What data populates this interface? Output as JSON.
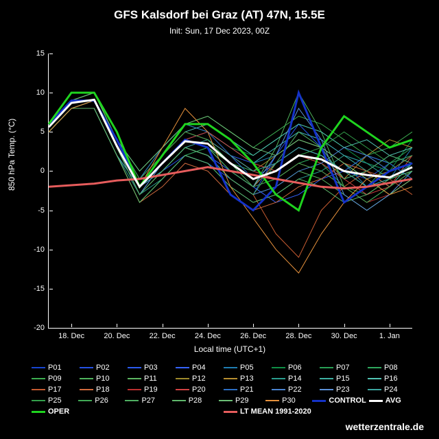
{
  "title": "GFS Kalsdorf bei Graz (AT) 47N, 15.5E",
  "subtitle": "Init: Sun, 17 Dec 2023, 00Z",
  "ylabel": "850 hPa Temp. (°C)",
  "xlabel": "Local time (UTC+1)",
  "brand": "wetterzentrale.de",
  "ylim": [
    -20,
    15
  ],
  "xlim": [
    0,
    16
  ],
  "yticks": [
    -20,
    -15,
    -10,
    -5,
    0,
    5,
    10,
    15
  ],
  "xticks": [
    {
      "v": 1,
      "l": "18. Dec"
    },
    {
      "v": 3,
      "l": "20. Dec"
    },
    {
      "v": 5,
      "l": "22. Dec"
    },
    {
      "v": 7,
      "l": "24. Dec"
    },
    {
      "v": 9,
      "l": "26. Dec"
    },
    {
      "v": 11,
      "l": "28. Dec"
    },
    {
      "v": 13,
      "l": "30. Dec"
    },
    {
      "v": 15,
      "l": "1. Jan"
    }
  ],
  "series": [
    {
      "name": "P01",
      "color": "#1846d2",
      "w": 1,
      "y": [
        6,
        9,
        9,
        4,
        -2,
        1,
        4,
        3,
        0,
        -2,
        1,
        3,
        2,
        0,
        -1,
        1,
        2
      ]
    },
    {
      "name": "P02",
      "color": "#2452e6",
      "w": 1,
      "y": [
        5,
        8,
        9,
        3,
        -3,
        0,
        2,
        1,
        -1,
        -3,
        2,
        6,
        3,
        -1,
        0,
        2,
        1
      ]
    },
    {
      "name": "P03",
      "color": "#2b5bf0",
      "w": 1,
      "y": [
        6,
        9,
        10,
        4,
        -1,
        2,
        5,
        4,
        2,
        1,
        3,
        5,
        4,
        2,
        1,
        0,
        2
      ]
    },
    {
      "name": "P04",
      "color": "#3563ff",
      "w": 1,
      "y": [
        5,
        8,
        8,
        2,
        -2,
        0,
        3,
        2,
        0,
        -2,
        -4,
        -3,
        -1,
        0,
        2,
        1,
        -1
      ]
    },
    {
      "name": "P05",
      "color": "#1f7fb4",
      "w": 1,
      "y": [
        6,
        9,
        9,
        3,
        -3,
        1,
        4,
        5,
        3,
        1,
        2,
        4,
        3,
        1,
        -2,
        -1,
        3
      ]
    },
    {
      "name": "P06",
      "color": "#0f8f46",
      "w": 1,
      "y": [
        5,
        8,
        9,
        4,
        -1,
        3,
        6,
        5,
        3,
        2,
        4,
        6,
        5,
        3,
        1,
        0,
        4
      ]
    },
    {
      "name": "P07",
      "color": "#28a055",
      "w": 1,
      "y": [
        6,
        9,
        9,
        3,
        -2,
        2,
        5,
        4,
        1,
        -1,
        0,
        2,
        1,
        -2,
        -3,
        -1,
        0
      ]
    },
    {
      "name": "P08",
      "color": "#2fa95e",
      "w": 1,
      "y": [
        5,
        8,
        8,
        2,
        -4,
        -1,
        2,
        3,
        1,
        0,
        -1,
        1,
        2,
        0,
        -2,
        1,
        3
      ]
    },
    {
      "name": "P09",
      "color": "#3cae50",
      "w": 1,
      "y": [
        6,
        9,
        10,
        4,
        -1,
        3,
        6,
        7,
        5,
        3,
        5,
        7,
        6,
        4,
        2,
        3,
        5
      ]
    },
    {
      "name": "P10",
      "color": "#4fb45c",
      "w": 1,
      "y": [
        5,
        8,
        9,
        3,
        -2,
        1,
        4,
        3,
        1,
        -2,
        3,
        10,
        5,
        -2,
        -4,
        -2,
        1
      ]
    },
    {
      "name": "P11",
      "color": "#5cb762",
      "w": 1,
      "y": [
        6,
        9,
        9,
        3,
        -3,
        0,
        3,
        2,
        -1,
        -3,
        -2,
        0,
        -1,
        -3,
        -5,
        -3,
        -1
      ]
    },
    {
      "name": "P12",
      "color": "#9d8a2b",
      "w": 1,
      "y": [
        5,
        8,
        9,
        4,
        -1,
        2,
        5,
        4,
        2,
        0,
        2,
        4,
        3,
        1,
        -1,
        0,
        2
      ]
    },
    {
      "name": "P13",
      "color": "#b88f30",
      "w": 1,
      "y": [
        6,
        9,
        9,
        3,
        -2,
        1,
        4,
        3,
        0,
        -2,
        1,
        3,
        2,
        -1,
        2,
        4,
        3
      ]
    },
    {
      "name": "P14",
      "color": "#2a9d8e",
      "w": 1,
      "y": [
        5,
        8,
        8,
        2,
        -3,
        -1,
        2,
        1,
        -2,
        -4,
        -3,
        -1,
        0,
        2,
        1,
        -1,
        0
      ]
    },
    {
      "name": "P15",
      "color": "#3db1a2",
      "w": 1,
      "y": [
        6,
        9,
        10,
        4,
        0,
        3,
        6,
        5,
        3,
        1,
        3,
        5,
        4,
        2,
        0,
        -2,
        1
      ]
    },
    {
      "name": "P16",
      "color": "#52c4b4",
      "w": 1,
      "y": [
        5,
        8,
        9,
        3,
        -2,
        2,
        5,
        6,
        4,
        2,
        4,
        6,
        5,
        3,
        4,
        2,
        3
      ]
    },
    {
      "name": "P17",
      "color": "#c45a30",
      "w": 1,
      "y": [
        6,
        9,
        9,
        3,
        -3,
        0,
        3,
        2,
        -1,
        -3,
        -8,
        -11,
        -5,
        -2,
        0,
        -1,
        -3
      ]
    },
    {
      "name": "P18",
      "color": "#d26b3e",
      "w": 1,
      "y": [
        5,
        8,
        8,
        2,
        -4,
        -2,
        1,
        0,
        -3,
        -5,
        -4,
        -2,
        -1,
        1,
        0,
        -2,
        0
      ]
    },
    {
      "name": "P19",
      "color": "#bc3030",
      "w": 1,
      "y": [
        6,
        9,
        10,
        4,
        -1,
        2,
        5,
        4,
        2,
        0,
        -1,
        1,
        0,
        -2,
        -4,
        -3,
        -1
      ]
    },
    {
      "name": "P20",
      "color": "#d24242",
      "w": 1,
      "y": [
        5,
        8,
        9,
        3,
        -2,
        1,
        4,
        5,
        3,
        1,
        0,
        2,
        1,
        -1,
        -3,
        -2,
        2
      ]
    },
    {
      "name": "P21",
      "color": "#2c6fc4",
      "w": 1,
      "y": [
        6,
        9,
        9,
        4,
        -1,
        3,
        6,
        5,
        2,
        -1,
        1,
        3,
        2,
        0,
        2,
        1,
        -1
      ]
    },
    {
      "name": "P22",
      "color": "#4983d1",
      "w": 1,
      "y": [
        5,
        8,
        9,
        3,
        -2,
        0,
        3,
        2,
        -1,
        -3,
        -2,
        0,
        1,
        3,
        2,
        0,
        1
      ]
    },
    {
      "name": "P23",
      "color": "#5b91d8",
      "w": 1,
      "y": [
        6,
        9,
        9,
        3,
        -3,
        1,
        4,
        3,
        0,
        -2,
        2,
        8,
        4,
        -3,
        -5,
        -3,
        0
      ]
    },
    {
      "name": "P24",
      "color": "#3ca6a0",
      "w": 1,
      "y": [
        5,
        8,
        8,
        2,
        -2,
        0,
        3,
        4,
        2,
        0,
        1,
        3,
        2,
        0,
        -2,
        -1,
        1
      ]
    },
    {
      "name": "P25",
      "color": "#33a04b",
      "w": 1,
      "y": [
        6,
        9,
        10,
        4,
        -1,
        2,
        5,
        4,
        1,
        -1,
        0,
        2,
        3,
        5,
        3,
        1,
        2
      ]
    },
    {
      "name": "P26",
      "color": "#41aa56",
      "w": 1,
      "y": [
        5,
        8,
        9,
        3,
        -2,
        1,
        4,
        3,
        0,
        -2,
        -1,
        1,
        0,
        -2,
        -4,
        -2,
        0
      ]
    },
    {
      "name": "P27",
      "color": "#4fb062",
      "w": 1,
      "y": [
        6,
        9,
        9,
        3,
        -3,
        0,
        3,
        2,
        -1,
        -3,
        1,
        5,
        3,
        -1,
        0,
        2,
        1
      ]
    },
    {
      "name": "P28",
      "color": "#5fb86c",
      "w": 1,
      "y": [
        5,
        8,
        8,
        2,
        -4,
        -1,
        2,
        1,
        -2,
        -4,
        -3,
        -1,
        -2,
        -4,
        -3,
        -1,
        0
      ]
    },
    {
      "name": "P29",
      "color": "#6cc076",
      "w": 1,
      "y": [
        6,
        9,
        10,
        4,
        0,
        3,
        6,
        7,
        5,
        3,
        2,
        4,
        3,
        1,
        -1,
        -3,
        -1
      ]
    },
    {
      "name": "P30",
      "color": "#e6913c",
      "w": 1,
      "y": [
        5,
        8,
        9,
        3,
        -2,
        3,
        8,
        5,
        -2,
        -6,
        -10,
        -13,
        -8,
        -4,
        -1,
        -3,
        -2
      ]
    },
    {
      "name": "CONTROL",
      "color": "#1432c8",
      "w": 3,
      "y": [
        6,
        9,
        9,
        4,
        -2,
        1,
        4,
        3,
        -3,
        -5,
        -2,
        10,
        3,
        -4,
        -2,
        0,
        1
      ]
    },
    {
      "name": "OPER",
      "color": "#1fd41f",
      "w": 3,
      "y": [
        6,
        10,
        10,
        5,
        -2,
        2,
        6,
        6,
        4,
        1,
        -3,
        -5,
        3,
        7,
        5,
        3,
        4
      ]
    },
    {
      "name": "LT MEAN 1991-2020",
      "color": "#e65c5c",
      "w": 3,
      "y": [
        -2,
        -1.8,
        -1.6,
        -1.2,
        -1,
        -0.5,
        0,
        0.5,
        0,
        -0.5,
        -1,
        -1.5,
        -2,
        -2.2,
        -2,
        -1.5,
        -1
      ]
    },
    {
      "name": "AVG",
      "color": "#ffffff",
      "w": 3,
      "y": [
        5.6,
        8.7,
        9.1,
        3.2,
        -2,
        1,
        3.8,
        3.5,
        1,
        -1,
        0,
        2,
        1.5,
        0,
        -0.5,
        -0.8,
        0.5
      ]
    }
  ],
  "legend_rows": [
    [
      "P01",
      "P02",
      "P03",
      "P04",
      "P05",
      "P06",
      "P07",
      "P08"
    ],
    [
      "P09",
      "P10",
      "P11",
      "P12",
      "P13",
      "P14",
      "P15",
      "P16"
    ],
    [
      "P17",
      "P18",
      "P19",
      "P20",
      "P21",
      "P22",
      "P23",
      "P24"
    ],
    [
      "P25",
      "P26",
      "P27",
      "P28",
      "P29",
      "P30",
      "CONTROL",
      "AVG"
    ],
    [
      "OPER",
      "LT MEAN 1991-2020"
    ]
  ]
}
